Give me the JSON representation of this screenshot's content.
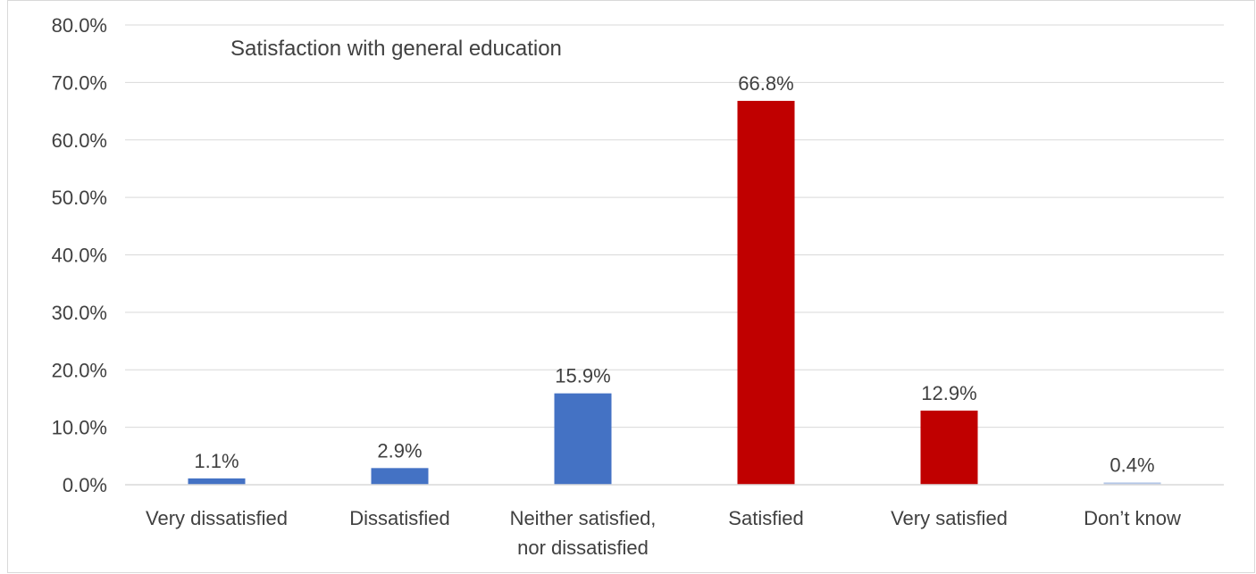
{
  "chart_data": {
    "type": "bar",
    "title": "Satisfaction with general education",
    "categories": [
      [
        "Very dissatisfied"
      ],
      [
        "Dissatisfied"
      ],
      [
        "Neither satisfied,",
        "nor dissatisfied"
      ],
      [
        "Satisfied"
      ],
      [
        "Very satisfied"
      ],
      [
        "Don’t know"
      ]
    ],
    "values": [
      1.1,
      2.9,
      15.9,
      66.8,
      12.9,
      0.4
    ],
    "data_labels": [
      "1.1%",
      "2.9%",
      "15.9%",
      "66.8%",
      "12.9%",
      "0.4%"
    ],
    "bar_colors": [
      "#4472C4",
      "#4472C4",
      "#4472C4",
      "#C00000",
      "#C00000",
      "#B4C7E7"
    ],
    "yticks": [
      "0.0%",
      "10.0%",
      "20.0%",
      "30.0%",
      "40.0%",
      "50.0%",
      "60.0%",
      "70.0%",
      "80.0%"
    ],
    "ylim": [
      0,
      80
    ],
    "xlabel": "",
    "ylabel": "",
    "grid": true,
    "legend": "none"
  }
}
